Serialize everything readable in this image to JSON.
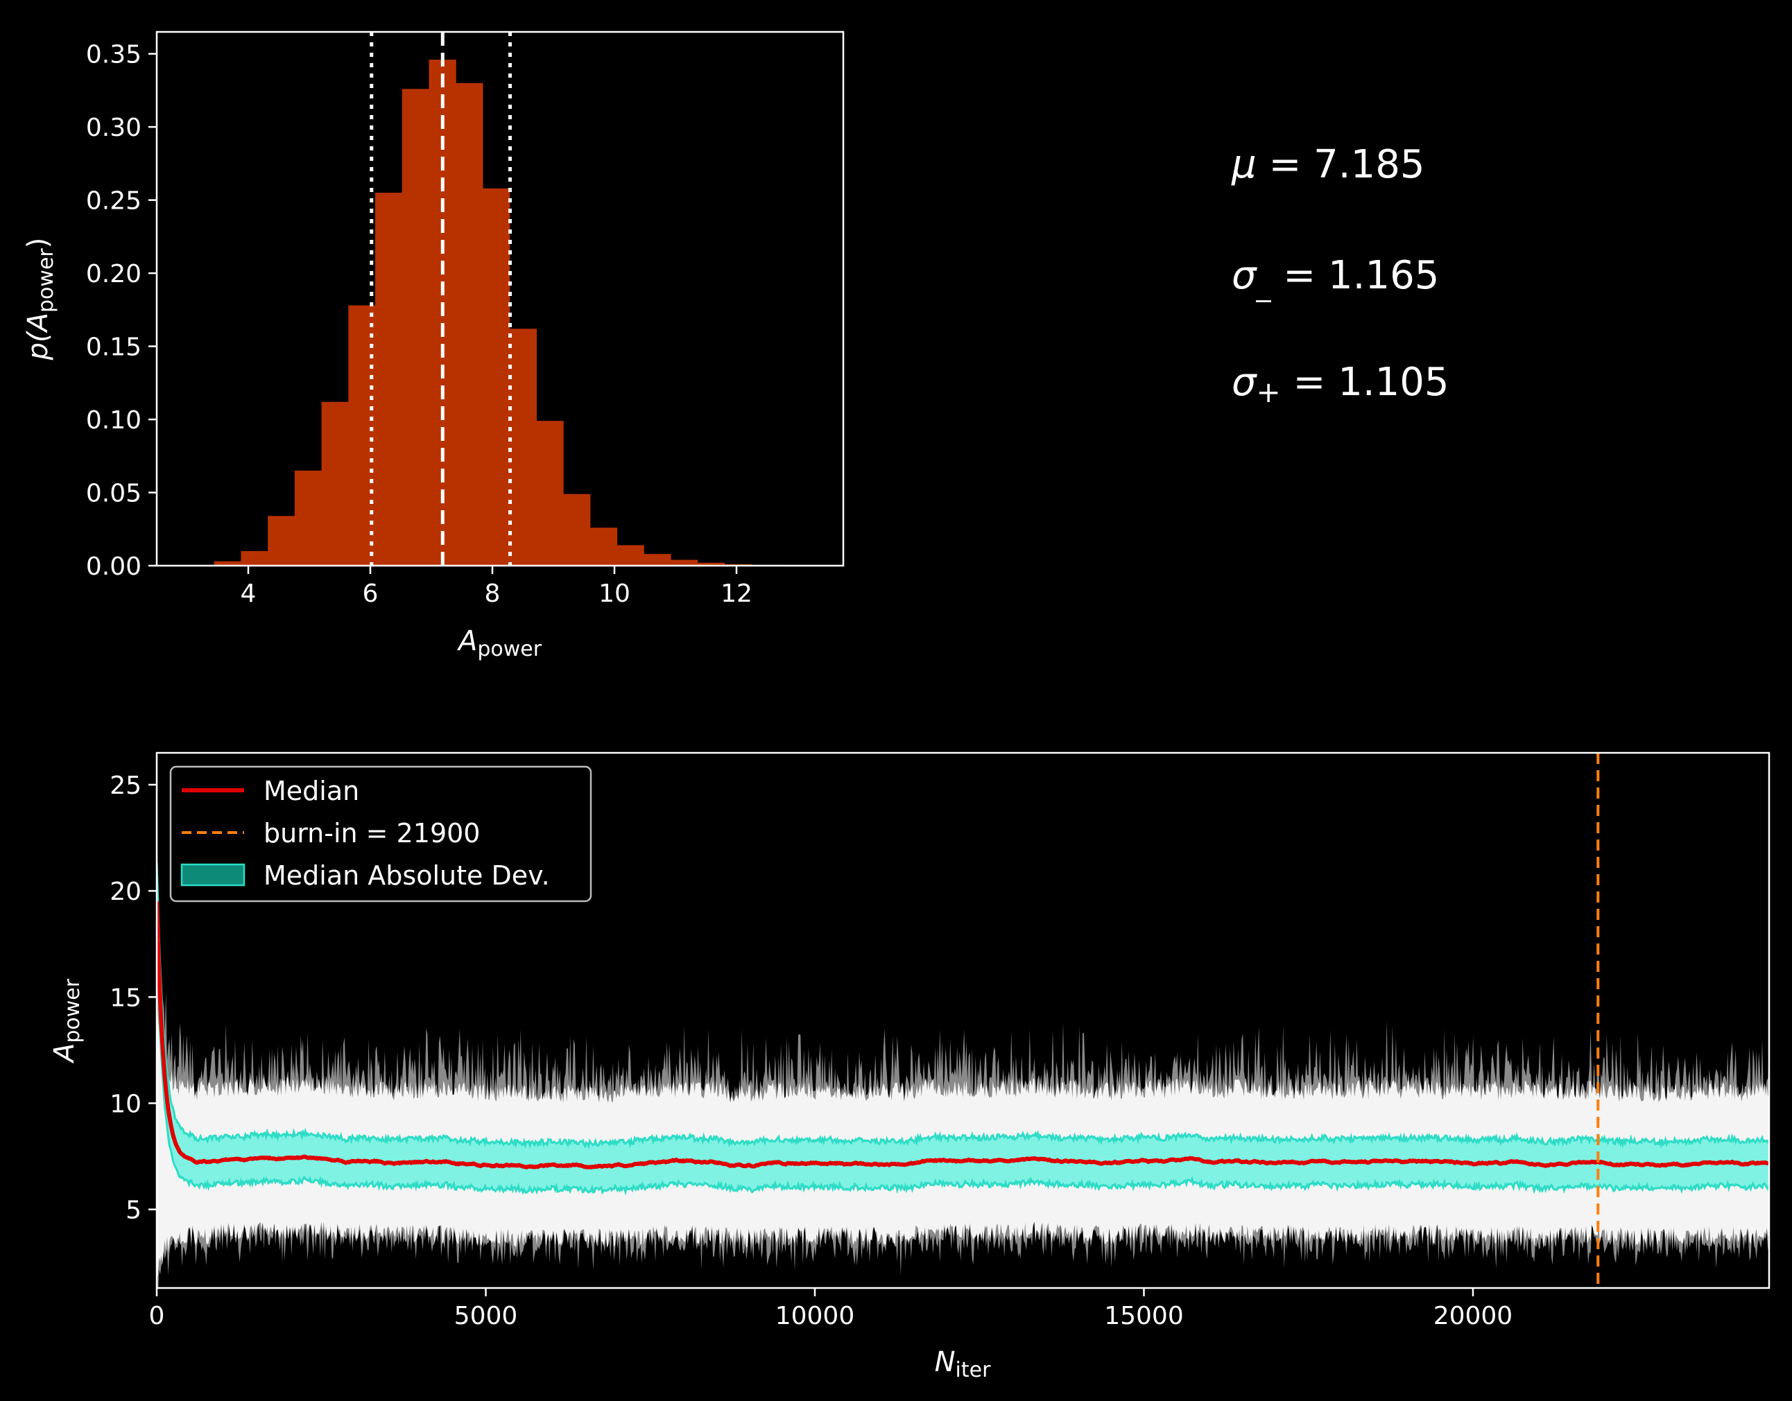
{
  "chart_data": [
    {
      "type": "bar",
      "xlabel_main": "A",
      "xlabel_sub": "power",
      "ylabel_pre": "p(A",
      "ylabel_sub": "power",
      "ylabel_post": ")",
      "xlim": [
        2.5,
        13.75
      ],
      "ylim": [
        0,
        0.365
      ],
      "xticks": [
        4,
        6,
        8,
        10,
        12
      ],
      "xtick_labels": [
        "4",
        "6",
        "8",
        "10",
        "12"
      ],
      "yticks": [
        0,
        0.05,
        0.1,
        0.15,
        0.2,
        0.25,
        0.3,
        0.35
      ],
      "ytick_labels": [
        "0.00",
        "0.05",
        "0.10",
        "0.15",
        "0.20",
        "0.25",
        "0.30",
        "0.35"
      ],
      "bin_width": 0.44,
      "bins": [
        {
          "x0": 3.44,
          "value": 0.003
        },
        {
          "x0": 3.88,
          "value": 0.01
        },
        {
          "x0": 4.32,
          "value": 0.034
        },
        {
          "x0": 4.76,
          "value": 0.065
        },
        {
          "x0": 5.2,
          "value": 0.112
        },
        {
          "x0": 5.64,
          "value": 0.178
        },
        {
          "x0": 6.08,
          "value": 0.255
        },
        {
          "x0": 6.52,
          "value": 0.326
        },
        {
          "x0": 6.96,
          "value": 0.346
        },
        {
          "x0": 7.4,
          "value": 0.33
        },
        {
          "x0": 7.84,
          "value": 0.258
        },
        {
          "x0": 8.28,
          "value": 0.162
        },
        {
          "x0": 8.72,
          "value": 0.099
        },
        {
          "x0": 9.16,
          "value": 0.049
        },
        {
          "x0": 9.6,
          "value": 0.026
        },
        {
          "x0": 10.04,
          "value": 0.014
        },
        {
          "x0": 10.48,
          "value": 0.008
        },
        {
          "x0": 10.92,
          "value": 0.004
        },
        {
          "x0": 11.36,
          "value": 0.002
        },
        {
          "x0": 11.8,
          "value": 0.001
        },
        {
          "x0": 12.24,
          "value": 0.0005
        }
      ],
      "median_line": 7.185,
      "lower_line": 6.02,
      "upper_line": 8.29,
      "bar_color": "#b83200"
    },
    {
      "type": "line",
      "xlabel_main": "N",
      "xlabel_sub": "iter",
      "ylabel_main": "A",
      "ylabel_sub": "power",
      "xlim": [
        0,
        24500
      ],
      "ylim": [
        1.3,
        26.5
      ],
      "xticks": [
        0,
        5000,
        10000,
        15000,
        20000
      ],
      "xtick_labels": [
        "0",
        "5000",
        "10000",
        "15000",
        "20000"
      ],
      "yticks": [
        5,
        10,
        15,
        20,
        25
      ],
      "ytick_labels": [
        "5",
        "10",
        "15",
        "20",
        "25"
      ],
      "burn_in": 21900,
      "median_level": 7.2,
      "mad_lower": 6.1,
      "mad_upper": 8.3,
      "walker_lower": 3.8,
      "walker_upper": 10.6,
      "initial_value": 19.5,
      "legend": {
        "placement": "upper-left",
        "items": [
          {
            "label": "Median",
            "style": "line",
            "color": "#e00000"
          },
          {
            "label": "burn-in = 21900",
            "style": "dashed",
            "color": "#ff7f0e"
          },
          {
            "label": "Median Absolute Dev.",
            "style": "patch",
            "color": "#1ab8a0"
          }
        ]
      },
      "colors": {
        "median": "#e00000",
        "burn_in": "#ff7f0e",
        "mad_fill": "#7ff2e3",
        "mad_edge": "#2edcc6",
        "walkers": "#ffffff",
        "walker_spikes": "#8a8a8a"
      }
    }
  ],
  "stats": {
    "mu_sym": "μ",
    "mu_val": " = 7.185",
    "sm_sym": "σ",
    "sm_sub": "_",
    "sm_val": " = 1.165",
    "sp_sym": "σ",
    "sp_sub": "+",
    "sp_val": " = 1.105"
  }
}
